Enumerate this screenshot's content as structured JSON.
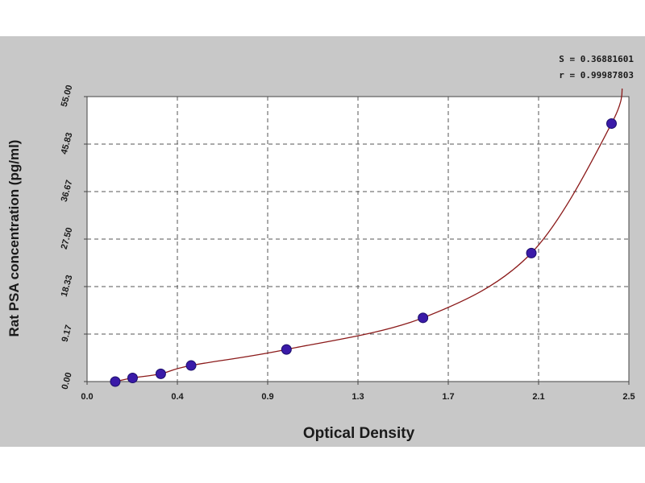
{
  "chart_data": {
    "type": "scatter",
    "xlabel": "Optical Density",
    "ylabel": "Rat PSA concentration (pg/ml)",
    "xlim": [
      0.0,
      2.5
    ],
    "ylim": [
      0.0,
      55.0
    ],
    "x_ticks": [
      "0.0",
      "0.4",
      "0.9",
      "1.3",
      "1.7",
      "2.1",
      "2.5"
    ],
    "y_ticks": [
      "0.00",
      "9.17",
      "18.33",
      "27.50",
      "36.67",
      "45.83",
      "55.00"
    ],
    "grid": true,
    "series": [
      {
        "x": [
          0.13,
          0.21,
          0.34,
          0.48,
          0.92,
          1.55,
          2.05,
          2.42
        ],
        "y": [
          0.0,
          0.7,
          1.5,
          3.1,
          6.2,
          12.3,
          24.8,
          49.8
        ]
      }
    ],
    "stats": [
      "S = 0.36881601",
      "r = 0.99987803"
    ],
    "colors": {
      "points": "#3a1aa8",
      "curve": "#8b1a1a",
      "background": "#c8c8c8",
      "plot_area": "#ffffff"
    }
  }
}
